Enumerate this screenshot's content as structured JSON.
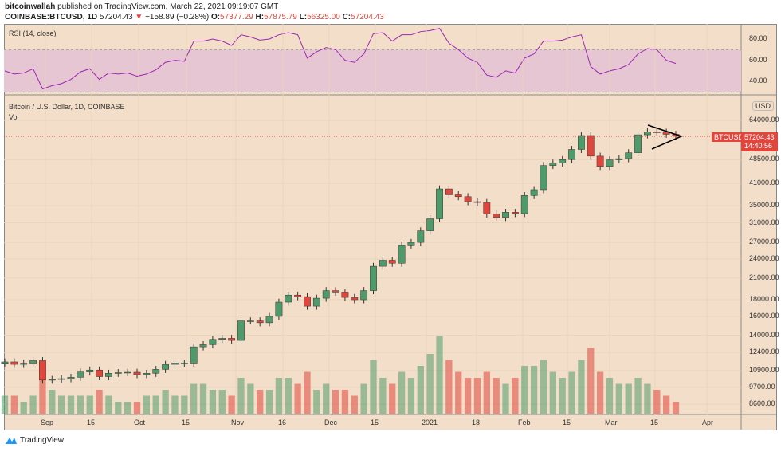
{
  "header": {
    "author": "bitcoinwallah",
    "published": "published on TradingView.com, March 22, 2021 09:19:07 GMT",
    "symbol": "COINBASE:BTCUSD, 1D",
    "last": "57204.43",
    "change": "−158.89 (−0.28%)",
    "o_label": "O:",
    "o": "57377.29",
    "h_label": "H:",
    "h": "57875.79",
    "l_label": "L:",
    "l": "56325.00",
    "c_label": "C:",
    "c": "57204.43"
  },
  "rsi": {
    "label": "RSI (14, close)",
    "ticks": [
      "80.00",
      "60.00",
      "40.00"
    ],
    "color": "#9c27b0",
    "band_color": "#e7c6d3"
  },
  "main": {
    "title": "Bitcoin / U.S. Dollar, 1D, COINBASE",
    "vol_label": "Vol",
    "currency": "USD",
    "price_ticks": [
      "64000.00",
      "48500.00",
      "41000.00",
      "35000.00",
      "31000.00",
      "27000.00",
      "24000.00",
      "21000.00",
      "18000.00",
      "16000.00",
      "14000.00",
      "12400.00",
      "10900.00",
      "9700.00",
      "8600.00"
    ],
    "price_tag": {
      "symbol": "BTCUSD",
      "price": "57204.43",
      "countdown": "14:40:56",
      "color": "#e0463c"
    },
    "up_color": "#4f9a6a",
    "down_color": "#e0463c"
  },
  "time_axis": [
    "Sep",
    "15",
    "Oct",
    "15",
    "Nov",
    "16",
    "Dec",
    "15",
    "2021",
    "18",
    "Feb",
    "15",
    "Mar",
    "15",
    "Apr"
  ],
  "footer": {
    "brand": "TradingView"
  },
  "chart_data": {
    "type": "candlestick",
    "scale": "log",
    "interval": "3 days (approx.)",
    "closes": [
      11600,
      11400,
      11500,
      11700,
      10200,
      10250,
      10300,
      10400,
      10800,
      10950,
      10450,
      10700,
      10750,
      10780,
      10600,
      10700,
      11000,
      11400,
      11500,
      11500,
      12900,
      13100,
      13600,
      13700,
      13500,
      15500,
      15500,
      15300,
      16000,
      17700,
      18600,
      18400,
      17200,
      18200,
      19200,
      19000,
      18300,
      18000,
      19200,
      22800,
      23800,
      23300,
      26500,
      27000,
      29300,
      31900,
      39400,
      38000,
      37300,
      36000,
      35800,
      33000,
      32200,
      33400,
      33100,
      37600,
      39200,
      46500,
      47300,
      48500,
      52100,
      57500,
      49700,
      46200,
      48400,
      48800,
      50900,
      57800,
      59000,
      58900,
      58000,
      57204
    ],
    "volume_relative": [
      3,
      3,
      2,
      3,
      6,
      4,
      3,
      3,
      3,
      3,
      4,
      3,
      2,
      2,
      2,
      3,
      3,
      4,
      3,
      3,
      5,
      5,
      4,
      4,
      3,
      6,
      5,
      4,
      4,
      6,
      6,
      5,
      7,
      4,
      5,
      4,
      4,
      3,
      5,
      9,
      6,
      5,
      7,
      6,
      8,
      10,
      13,
      9,
      7,
      6,
      6,
      7,
      6,
      5,
      6,
      8,
      8,
      9,
      7,
      6,
      7,
      9,
      11,
      7,
      6,
      5,
      5,
      6,
      5,
      4,
      3,
      2
    ],
    "rsi": [
      50,
      47,
      48,
      52,
      33,
      36,
      38,
      42,
      49,
      52,
      42,
      48,
      47,
      48,
      45,
      47,
      51,
      58,
      60,
      59,
      78,
      78,
      80,
      78,
      74,
      84,
      82,
      79,
      80,
      84,
      86,
      84,
      62,
      68,
      72,
      70,
      60,
      58,
      66,
      85,
      86,
      78,
      84,
      84,
      87,
      88,
      90,
      76,
      70,
      62,
      58,
      46,
      44,
      50,
      48,
      62,
      66,
      78,
      78,
      79,
      82,
      84,
      54,
      47,
      50,
      52,
      56,
      66,
      71,
      70,
      60,
      57
    ]
  }
}
